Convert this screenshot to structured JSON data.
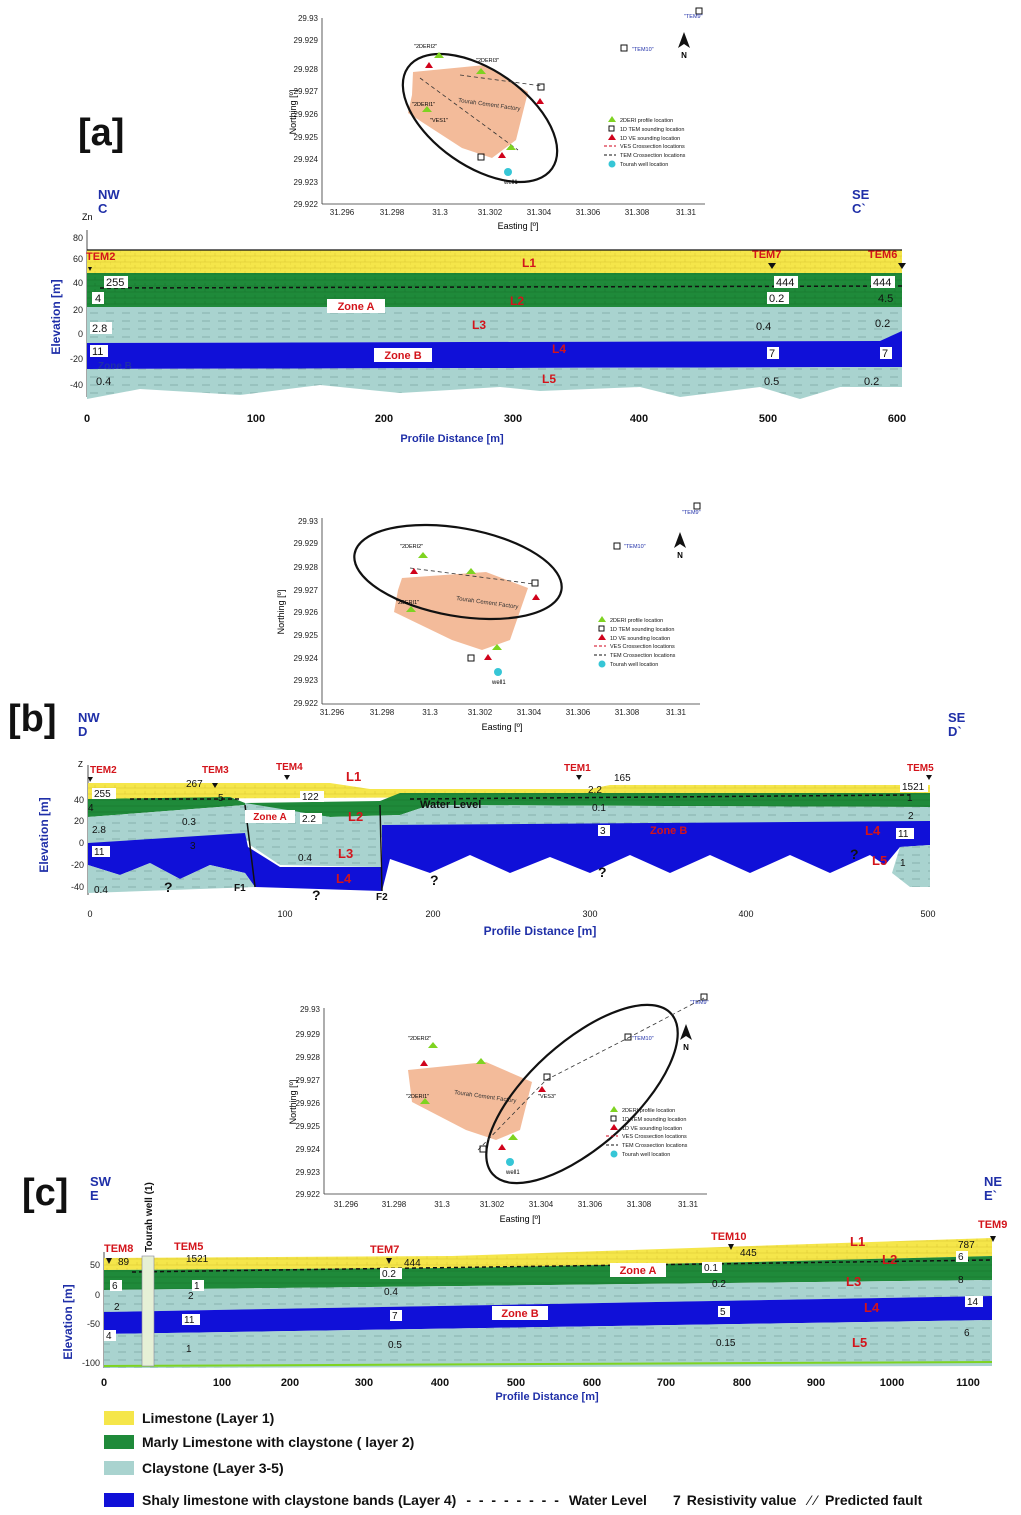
{
  "panels": {
    "a": {
      "letter": "[a]",
      "left_dir": "NW",
      "left_code": "C",
      "right_dir": "SE",
      "right_code": "C`"
    },
    "b": {
      "letter": "[b]",
      "left_dir": "NW",
      "left_code": "D",
      "right_dir": "SE",
      "right_code": "D`"
    },
    "c": {
      "letter": "[c]",
      "left_dir": "SW",
      "left_code": "E",
      "right_dir": "NE",
      "right_code": "E`"
    }
  },
  "map": {
    "y_axis_label": "Northing [º]",
    "x_axis_label": "Easting [º]",
    "y_ticks": [
      "29.93",
      "29.929",
      "29.928",
      "29.927",
      "29.926",
      "29.925",
      "29.924",
      "29.923",
      "29.922"
    ],
    "x_ticks": [
      "31.296",
      "31.298",
      "31.3",
      "31.302",
      "31.304",
      "31.306",
      "31.308",
      "31.31"
    ],
    "factory_label": "Tourah Cement Factory",
    "north": "N",
    "well_label": "well1",
    "legend": [
      "2DERI profile location",
      "1D TEM sounding location",
      "1D VE sounding location",
      "VES Crossection locations",
      "TEM Crossection locations",
      "Tourah well location"
    ],
    "labels": [
      "\"2DERI2\"",
      "\"2DERI3\"",
      "\"2DERI1\"",
      "\"2DERI4\"",
      "\"VES1\"",
      "\"VES2\"",
      "\"VES3\"",
      "\"VES6\"",
      "\"VES7\"",
      "\"TEM1\"",
      "\"TEM2\"",
      "\"TEM3\"",
      "\"TEM5\"",
      "\"TEM6\"",
      "\"TEM8\"",
      "\"TEM9\"",
      "\"TEM10\""
    ]
  },
  "sections": {
    "a": {
      "ylabel": "Elevation [m]",
      "xlabel": "Profile Distance [m]",
      "z": "Zn",
      "y_ticks": [
        "80",
        "60",
        "40",
        "20",
        "0",
        "-20",
        "-40"
      ],
      "x_ticks": [
        "0",
        "100",
        "200",
        "300",
        "400",
        "500",
        "600"
      ],
      "stations": [
        "TEM2",
        "TEM7",
        "TEM6"
      ],
      "layers": [
        "L1",
        "L2",
        "L3",
        "L4",
        "L5"
      ],
      "zones": [
        "Zone A",
        "Zone B",
        "Zone B"
      ],
      "values": [
        "255",
        "4",
        "2.8",
        "11",
        "0.4",
        "444",
        "0.2",
        "0.4",
        "7",
        "0.5",
        "444",
        "4.5",
        "0.2",
        "7",
        "0.2"
      ]
    },
    "b": {
      "ylabel": "Elevation [m]",
      "xlabel": "Profile Distance [m]",
      "z": "Z",
      "y_ticks": [
        "40",
        "20",
        "0",
        "-20",
        "-40"
      ],
      "x_ticks": [
        "0",
        "100",
        "200",
        "300",
        "400",
        "500"
      ],
      "stations": [
        "TEM2",
        "TEM3",
        "TEM4",
        "TEM1",
        "TEM5"
      ],
      "layers": [
        "L1",
        "L2",
        "L3",
        "L4",
        "L4",
        "L5"
      ],
      "zones": [
        "Zone A",
        "Zone B"
      ],
      "water_level": "Water Level",
      "faults": [
        "F1",
        "F2"
      ],
      "unknown": "?",
      "values": [
        "255",
        "267",
        "122",
        "165",
        "1521",
        "4",
        "5",
        "2.2",
        "2.2",
        "0.1",
        "1",
        "2.8",
        "0.3",
        "0.4",
        "3",
        "2",
        "11",
        "3",
        "11",
        "1",
        "0.4"
      ]
    },
    "c": {
      "ylabel": "Elevation [m]",
      "xlabel": "Profile Distance [m]",
      "y_ticks": [
        "50",
        "0",
        "-50",
        "-100"
      ],
      "x_ticks": [
        "0",
        "100",
        "200",
        "300",
        "400",
        "500",
        "600",
        "700",
        "800",
        "900",
        "1000",
        "1100"
      ],
      "stations": [
        "TEM8",
        "TEM5",
        "TEM7",
        "TEM10",
        "TEM9"
      ],
      "well": "Tourah well (1)",
      "layers": [
        "L1",
        "L2",
        "L3",
        "L4",
        "L5"
      ],
      "zones": [
        "Zone A",
        "Zone B"
      ],
      "values": [
        "89",
        "1521",
        "444",
        "445",
        "787",
        "6",
        "1",
        "0.2",
        "0.1",
        "6",
        "2",
        "2",
        "0.4",
        "0.2",
        "8",
        "4",
        "11",
        "7",
        "5",
        "14",
        "1",
        "0.5",
        "0.15",
        "6"
      ]
    }
  },
  "legend": {
    "limestone": "Limestone (Layer 1)",
    "marly": "Marly Limestone with claystone ( layer 2)",
    "claystone": "Claystone  (Layer 3-5)",
    "shaly": "Shaly limestone with claystone bands (Layer 4)",
    "water_level": "Water Level",
    "res_num": "7",
    "res_text": "Resistivity value",
    "fault": "Predicted fault"
  },
  "colors": {
    "limestone": "#f5e64a",
    "marly": "#1f8a3a",
    "claystone": "#a9d3cf",
    "shaly": "#1010d8",
    "label_red": "#d3141b",
    "label_blue": "#1f2fa8",
    "factory": "#f2b48f"
  }
}
